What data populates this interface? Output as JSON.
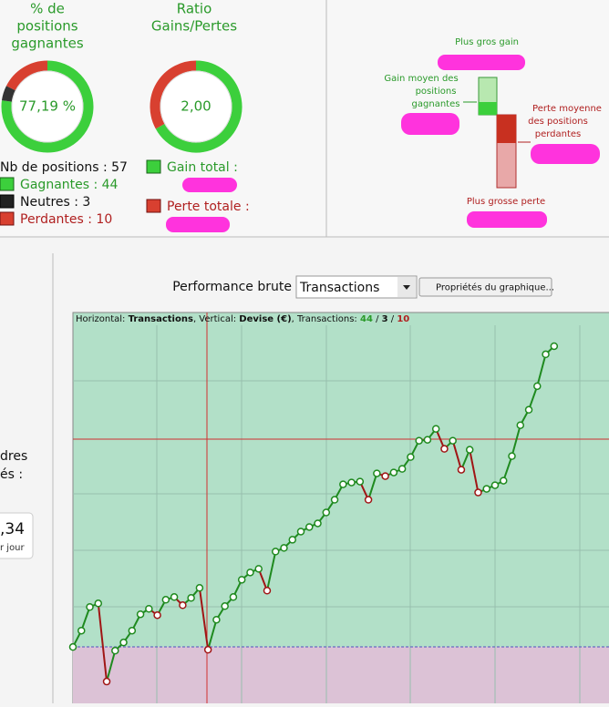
{
  "top": {
    "win_rate": {
      "title": [
        "% de",
        "positions",
        "gagnantes"
      ],
      "center": "77,19 %",
      "ring": [
        {
          "value": 44,
          "color": "#3ccf3c"
        },
        {
          "value": 3,
          "color": "#333333"
        },
        {
          "value": 10,
          "color": "#d84030"
        }
      ]
    },
    "ratio": {
      "title": [
        "Ratio",
        "Gains/Pertes"
      ],
      "center": "2,00",
      "ring": [
        {
          "value": 67,
          "color": "#3ccf3c"
        },
        {
          "value": 33,
          "color": "#d84030"
        }
      ]
    },
    "counts": [
      "Nb de positions : 57",
      "Gagnantes : 44",
      "Neutres : 3",
      "Perdantes : 10"
    ],
    "totals": [
      "Gain total :",
      "Perte totale :"
    ],
    "diagram": {
      "max_gain": "Plus gros gain",
      "avg_gain": [
        "Gain moyen des",
        "positions",
        "gagnantes"
      ],
      "avg_loss": [
        "Perte moyenne",
        "des positions",
        "perdantes"
      ],
      "max_loss": "Plus grosse perte"
    }
  },
  "side": {
    "lines": [
      "dres",
      "és :"
    ],
    "value": ",34",
    "unit": "r jour"
  },
  "toolbar": {
    "label": "Performance brute",
    "select": "Transactions",
    "button": "Propriétés du graphique..."
  },
  "chart_data": {
    "type": "line",
    "header": {
      "h": "Horizontal:",
      "h_val": "Transactions",
      "v": "Vertical:",
      "v_val": "Devise (€)",
      "t": "Transactions:",
      "wins": "44",
      "neutral": "3",
      "losses": "10"
    },
    "x": [
      0,
      1,
      2,
      3,
      4,
      5,
      6,
      7,
      8,
      9,
      10,
      11,
      12,
      13,
      14,
      15,
      16,
      17,
      18,
      19,
      20,
      21,
      22,
      23,
      24,
      25,
      26,
      27,
      28,
      29,
      30,
      31,
      32,
      33,
      34,
      35,
      36,
      37,
      38,
      39,
      40,
      41,
      42,
      43,
      44,
      45,
      46,
      47,
      48,
      49,
      50,
      51,
      52,
      53,
      54,
      55,
      56,
      57
    ],
    "values": [
      0,
      18,
      44,
      48,
      -38,
      -4,
      5,
      18,
      36,
      42,
      35,
      52,
      55,
      46,
      54,
      65,
      -3,
      30,
      45,
      55,
      74,
      82,
      86,
      62,
      105,
      109,
      118,
      127,
      132,
      136,
      148,
      162,
      179,
      181,
      182,
      162,
      191,
      188,
      192,
      196,
      209,
      227,
      228,
      240,
      218,
      227,
      195,
      217,
      170,
      174,
      178,
      183,
      210,
      244,
      261,
      287,
      322,
      331
    ],
    "rise_color": "#1f8a1f",
    "fall_color": "#a01515",
    "xlim": [
      0,
      63.5
    ],
    "ylim": [
      -62,
      354
    ]
  }
}
